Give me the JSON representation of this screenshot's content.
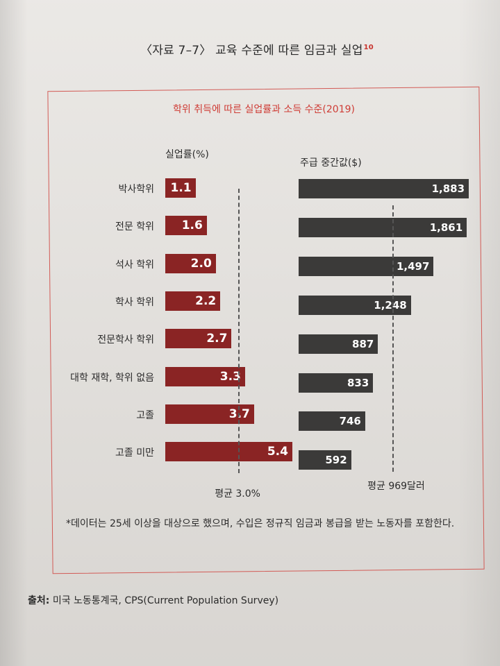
{
  "heading": {
    "text": "〈자료 7–7〉 교육 수준에 따른 임금과 실업",
    "footnote_mark": "10"
  },
  "chart_data": {
    "type": "bar",
    "title": "학위 취득에 따른 실업률과 소득 수준(2019)",
    "categories": [
      "박사학위",
      "전문 학위",
      "석사 학위",
      "학사 학위",
      "전문학사 학위",
      "대학 재학, 학위 없음",
      "고졸",
      "고졸 미만"
    ],
    "series": [
      {
        "name": "실업률(%)",
        "values": [
          1.1,
          1.6,
          2.0,
          2.2,
          2.7,
          3.3,
          3.7,
          5.4
        ],
        "labels": [
          "1.1",
          "1.6",
          "2.0",
          "2.2",
          "2.7",
          "3.3",
          "3.7",
          "5.4"
        ],
        "color": "#8a2424",
        "average": 3.0,
        "average_label": "평균 3.0%"
      },
      {
        "name": "주급 중간값($)",
        "values": [
          1883,
          1861,
          1497,
          1248,
          887,
          833,
          746,
          592
        ],
        "labels": [
          "1,883",
          "1,861",
          "1,497",
          "1,248",
          "887",
          "833",
          "746",
          "592"
        ],
        "color": "#3b3a39",
        "average": 969,
        "average_label": "평균 969달러"
      }
    ],
    "orientation": "horizontal",
    "grid": false,
    "legend": "none"
  },
  "note": "*데이터는 25세 이상을 대상으로 했으며, 수입은 정규직 임금과 봉급을 받는 노동자를 포함한다.",
  "source": {
    "label": "출처:",
    "text": "미국 노동통계국, CPS(Current Population Survey)"
  }
}
